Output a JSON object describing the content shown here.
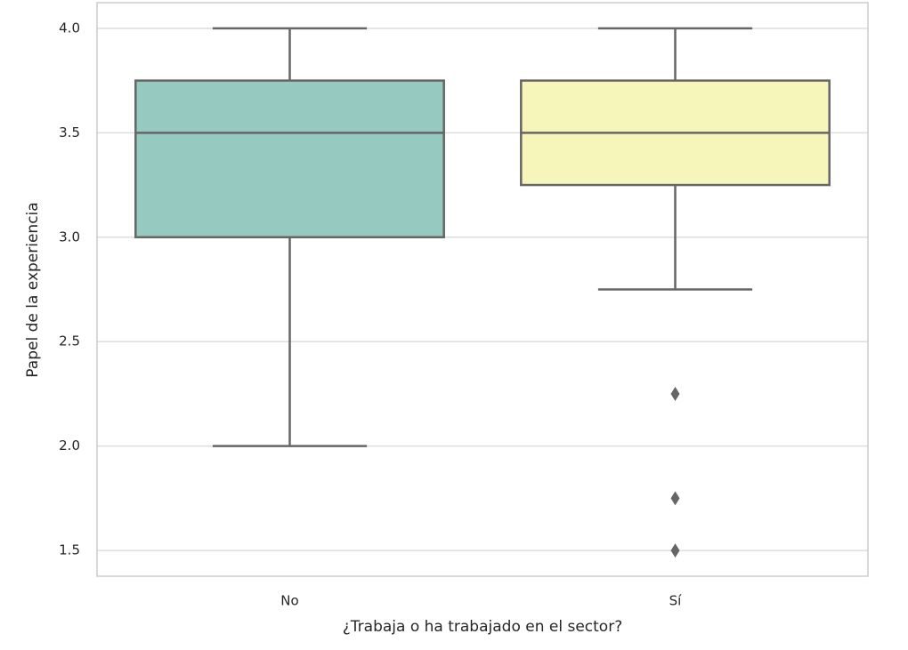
{
  "chart_data": {
    "type": "box",
    "xlabel": "¿Trabaja o ha trabajado en el sector?",
    "ylabel": "Papel de la experiencia",
    "categories": [
      "No",
      "Sí"
    ],
    "boxes": [
      {
        "low": 2.0,
        "q1": 3.0,
        "median": 3.5,
        "q3": 3.75,
        "high": 4.0,
        "outliers": [],
        "color": "#96c9c0"
      },
      {
        "low": 2.75,
        "q1": 3.25,
        "median": 3.5,
        "q3": 3.75,
        "high": 4.0,
        "outliers": [
          2.25,
          1.75,
          1.5
        ],
        "color": "#f6f6bb"
      }
    ],
    "ylim": [
      1.377,
      4.123
    ],
    "yticks": [
      1.5,
      {
        "value": 2.0,
        "label": "2.0"
      },
      2.5,
      {
        "value": 3.0,
        "label": "3.0"
      },
      3.5,
      {
        "value": 4.0,
        "label": "4.0"
      }
    ],
    "grid": true
  }
}
